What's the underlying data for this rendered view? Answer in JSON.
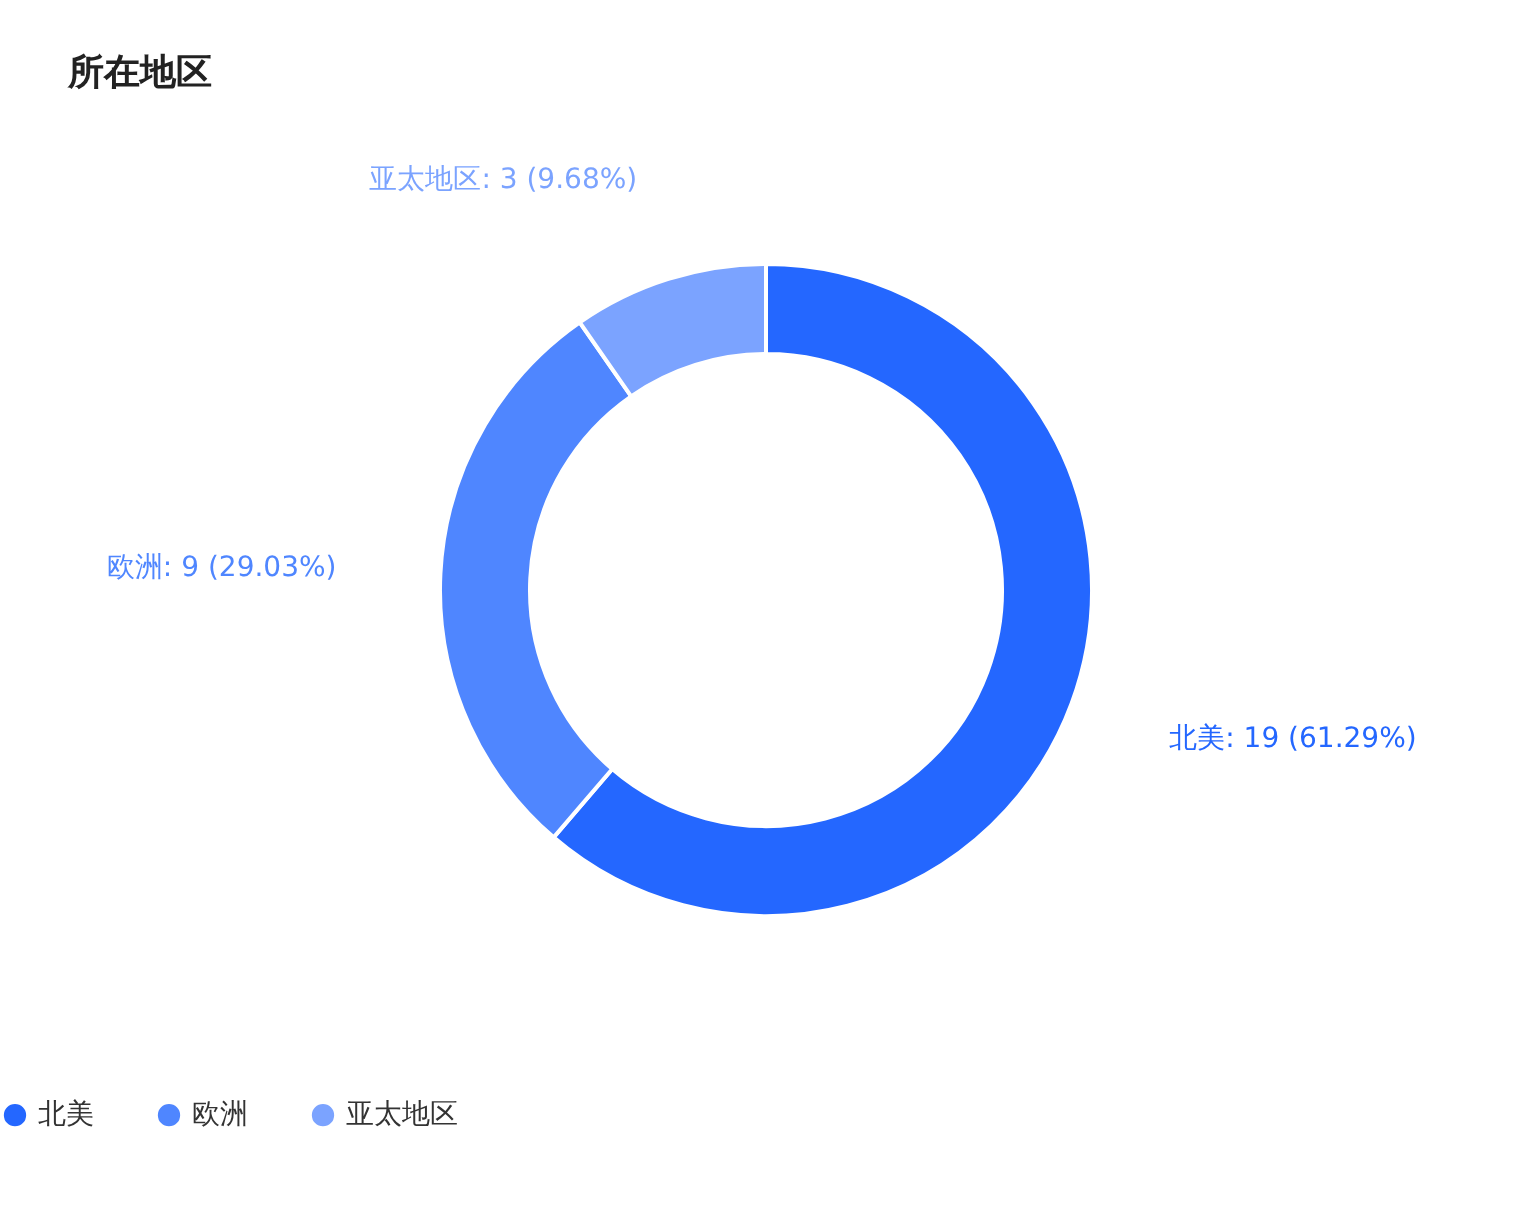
{
  "chart_data": {
    "type": "donut",
    "title": "所在地区",
    "categories": [
      "北美",
      "欧洲",
      "亚太地区"
    ],
    "values": [
      19,
      9,
      3
    ],
    "colors": [
      "#2467ff",
      "#4f86ff",
      "#7ba3ff"
    ],
    "value_labels": [
      "北美: 19 (61.29%)",
      "欧洲: 9 (29.03%)",
      "亚太地区: 3 (9.68%)"
    ],
    "legend": "bottom"
  }
}
